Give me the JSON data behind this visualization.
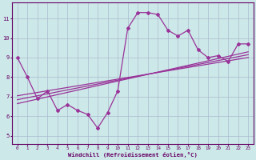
{
  "x_data": [
    0,
    1,
    2,
    3,
    4,
    5,
    6,
    7,
    8,
    9,
    10,
    11,
    12,
    13,
    14,
    15,
    16,
    17,
    18,
    19,
    20,
    21,
    22,
    23
  ],
  "y_data": [
    9.0,
    8.0,
    6.9,
    7.3,
    6.3,
    6.6,
    6.3,
    6.1,
    5.4,
    6.2,
    7.3,
    10.5,
    11.3,
    11.3,
    11.2,
    10.4,
    10.1,
    10.4,
    9.4,
    9.0,
    9.1,
    8.8,
    9.7,
    9.7
  ],
  "bg_color": "#cde8e8",
  "line_color": "#993399",
  "grid_color": "#aabbd0",
  "xlabel": "Windchill (Refroidissement éolien,°C)",
  "ylabel_ticks": [
    5,
    6,
    7,
    8,
    9,
    10,
    11
  ],
  "ylim": [
    4.6,
    11.8
  ],
  "xlim": [
    -0.5,
    23.5
  ],
  "xlabel_color": "#660066",
  "tick_color": "#660066",
  "border_color": "#660066",
  "trend_line_slopes": [
    0.085,
    0.1,
    0.115
  ],
  "trend_line_intercepts": [
    7.05,
    6.85,
    6.65
  ]
}
